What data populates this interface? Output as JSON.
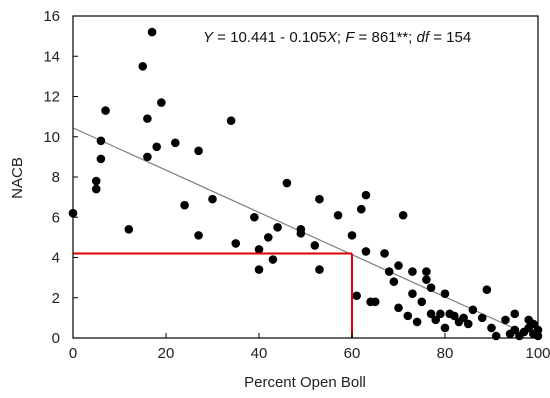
{
  "chart_data": {
    "type": "scatter",
    "xlabel": "Percent Open Boll",
    "ylabel": "NACB",
    "xlim": [
      0,
      100
    ],
    "ylim": [
      0,
      16
    ],
    "xticks": [
      "0",
      "20",
      "40",
      "60",
      "80",
      "100"
    ],
    "yticks": [
      "0",
      "2",
      "4",
      "6",
      "8",
      "10",
      "12",
      "14",
      "16"
    ],
    "grid": false,
    "annotation": {
      "parts": [
        {
          "text": "Y",
          "italic": true
        },
        {
          "text": " = 10.441 - 0.105",
          "italic": false
        },
        {
          "text": "X",
          "italic": true
        },
        {
          "text": "; ",
          "italic": false
        },
        {
          "text": "F",
          "italic": true
        },
        {
          "text": " = 861**; ",
          "italic": false
        },
        {
          "text": "df",
          "italic": true
        },
        {
          "text": " = 154",
          "italic": false
        }
      ]
    },
    "regression": {
      "intercept": 10.441,
      "slope": -0.105
    },
    "reference_lines": {
      "color": "#e00000",
      "x": 60,
      "y": 4.2
    },
    "colors": {
      "points": "#000000",
      "regression_line": "#7f7f7f",
      "axes": "#000000",
      "reference": "#e00000"
    },
    "points": [
      {
        "x": 0,
        "y": 6.2
      },
      {
        "x": 5,
        "y": 7.8
      },
      {
        "x": 5,
        "y": 7.4
      },
      {
        "x": 6,
        "y": 9.8
      },
      {
        "x": 6,
        "y": 8.9
      },
      {
        "x": 7,
        "y": 11.3
      },
      {
        "x": 12,
        "y": 5.4
      },
      {
        "x": 15,
        "y": 13.5
      },
      {
        "x": 16,
        "y": 10.9
      },
      {
        "x": 16,
        "y": 9.0
      },
      {
        "x": 17,
        "y": 15.2
      },
      {
        "x": 18,
        "y": 9.5
      },
      {
        "x": 19,
        "y": 11.7
      },
      {
        "x": 22,
        "y": 9.7
      },
      {
        "x": 24,
        "y": 6.6
      },
      {
        "x": 27,
        "y": 9.3
      },
      {
        "x": 27,
        "y": 5.1
      },
      {
        "x": 30,
        "y": 6.9
      },
      {
        "x": 34,
        "y": 10.8
      },
      {
        "x": 35,
        "y": 4.7
      },
      {
        "x": 39,
        "y": 6.0
      },
      {
        "x": 40,
        "y": 4.4
      },
      {
        "x": 40,
        "y": 3.4
      },
      {
        "x": 42,
        "y": 5.0
      },
      {
        "x": 43,
        "y": 3.9
      },
      {
        "x": 44,
        "y": 5.5
      },
      {
        "x": 46,
        "y": 7.7
      },
      {
        "x": 49,
        "y": 5.4
      },
      {
        "x": 49,
        "y": 5.2
      },
      {
        "x": 52,
        "y": 4.6
      },
      {
        "x": 53,
        "y": 6.9
      },
      {
        "x": 53,
        "y": 3.4
      },
      {
        "x": 57,
        "y": 6.1
      },
      {
        "x": 60,
        "y": 5.1
      },
      {
        "x": 61,
        "y": 2.1
      },
      {
        "x": 62,
        "y": 6.4
      },
      {
        "x": 63,
        "y": 7.1
      },
      {
        "x": 63,
        "y": 4.3
      },
      {
        "x": 64,
        "y": 1.8
      },
      {
        "x": 65,
        "y": 1.8
      },
      {
        "x": 67,
        "y": 4.2
      },
      {
        "x": 68,
        "y": 3.3
      },
      {
        "x": 69,
        "y": 2.8
      },
      {
        "x": 70,
        "y": 3.6
      },
      {
        "x": 70,
        "y": 1.5
      },
      {
        "x": 71,
        "y": 6.1
      },
      {
        "x": 72,
        "y": 1.1
      },
      {
        "x": 73,
        "y": 2.2
      },
      {
        "x": 73,
        "y": 3.3
      },
      {
        "x": 74,
        "y": 0.8
      },
      {
        "x": 75,
        "y": 1.8
      },
      {
        "x": 76,
        "y": 3.3
      },
      {
        "x": 76,
        "y": 2.9
      },
      {
        "x": 77,
        "y": 1.2
      },
      {
        "x": 77,
        "y": 2.5
      },
      {
        "x": 78,
        "y": 0.9
      },
      {
        "x": 79,
        "y": 1.2
      },
      {
        "x": 80,
        "y": 0.5
      },
      {
        "x": 80,
        "y": 2.2
      },
      {
        "x": 81,
        "y": 1.2
      },
      {
        "x": 82,
        "y": 1.1
      },
      {
        "x": 83,
        "y": 0.8
      },
      {
        "x": 84,
        "y": 1.0
      },
      {
        "x": 85,
        "y": 0.7
      },
      {
        "x": 86,
        "y": 1.4
      },
      {
        "x": 88,
        "y": 1.0
      },
      {
        "x": 89,
        "y": 2.4
      },
      {
        "x": 90,
        "y": 0.5
      },
      {
        "x": 91,
        "y": 0.1
      },
      {
        "x": 93,
        "y": 0.9
      },
      {
        "x": 94,
        "y": 0.2
      },
      {
        "x": 95,
        "y": 1.2
      },
      {
        "x": 95,
        "y": 0.4
      },
      {
        "x": 96,
        "y": 0.1
      },
      {
        "x": 97,
        "y": 0.3
      },
      {
        "x": 98,
        "y": 0.9
      },
      {
        "x": 98,
        "y": 0.5
      },
      {
        "x": 99,
        "y": 0.2
      },
      {
        "x": 99,
        "y": 0.7
      },
      {
        "x": 100,
        "y": 0.4
      },
      {
        "x": 100,
        "y": 0.1
      }
    ]
  }
}
